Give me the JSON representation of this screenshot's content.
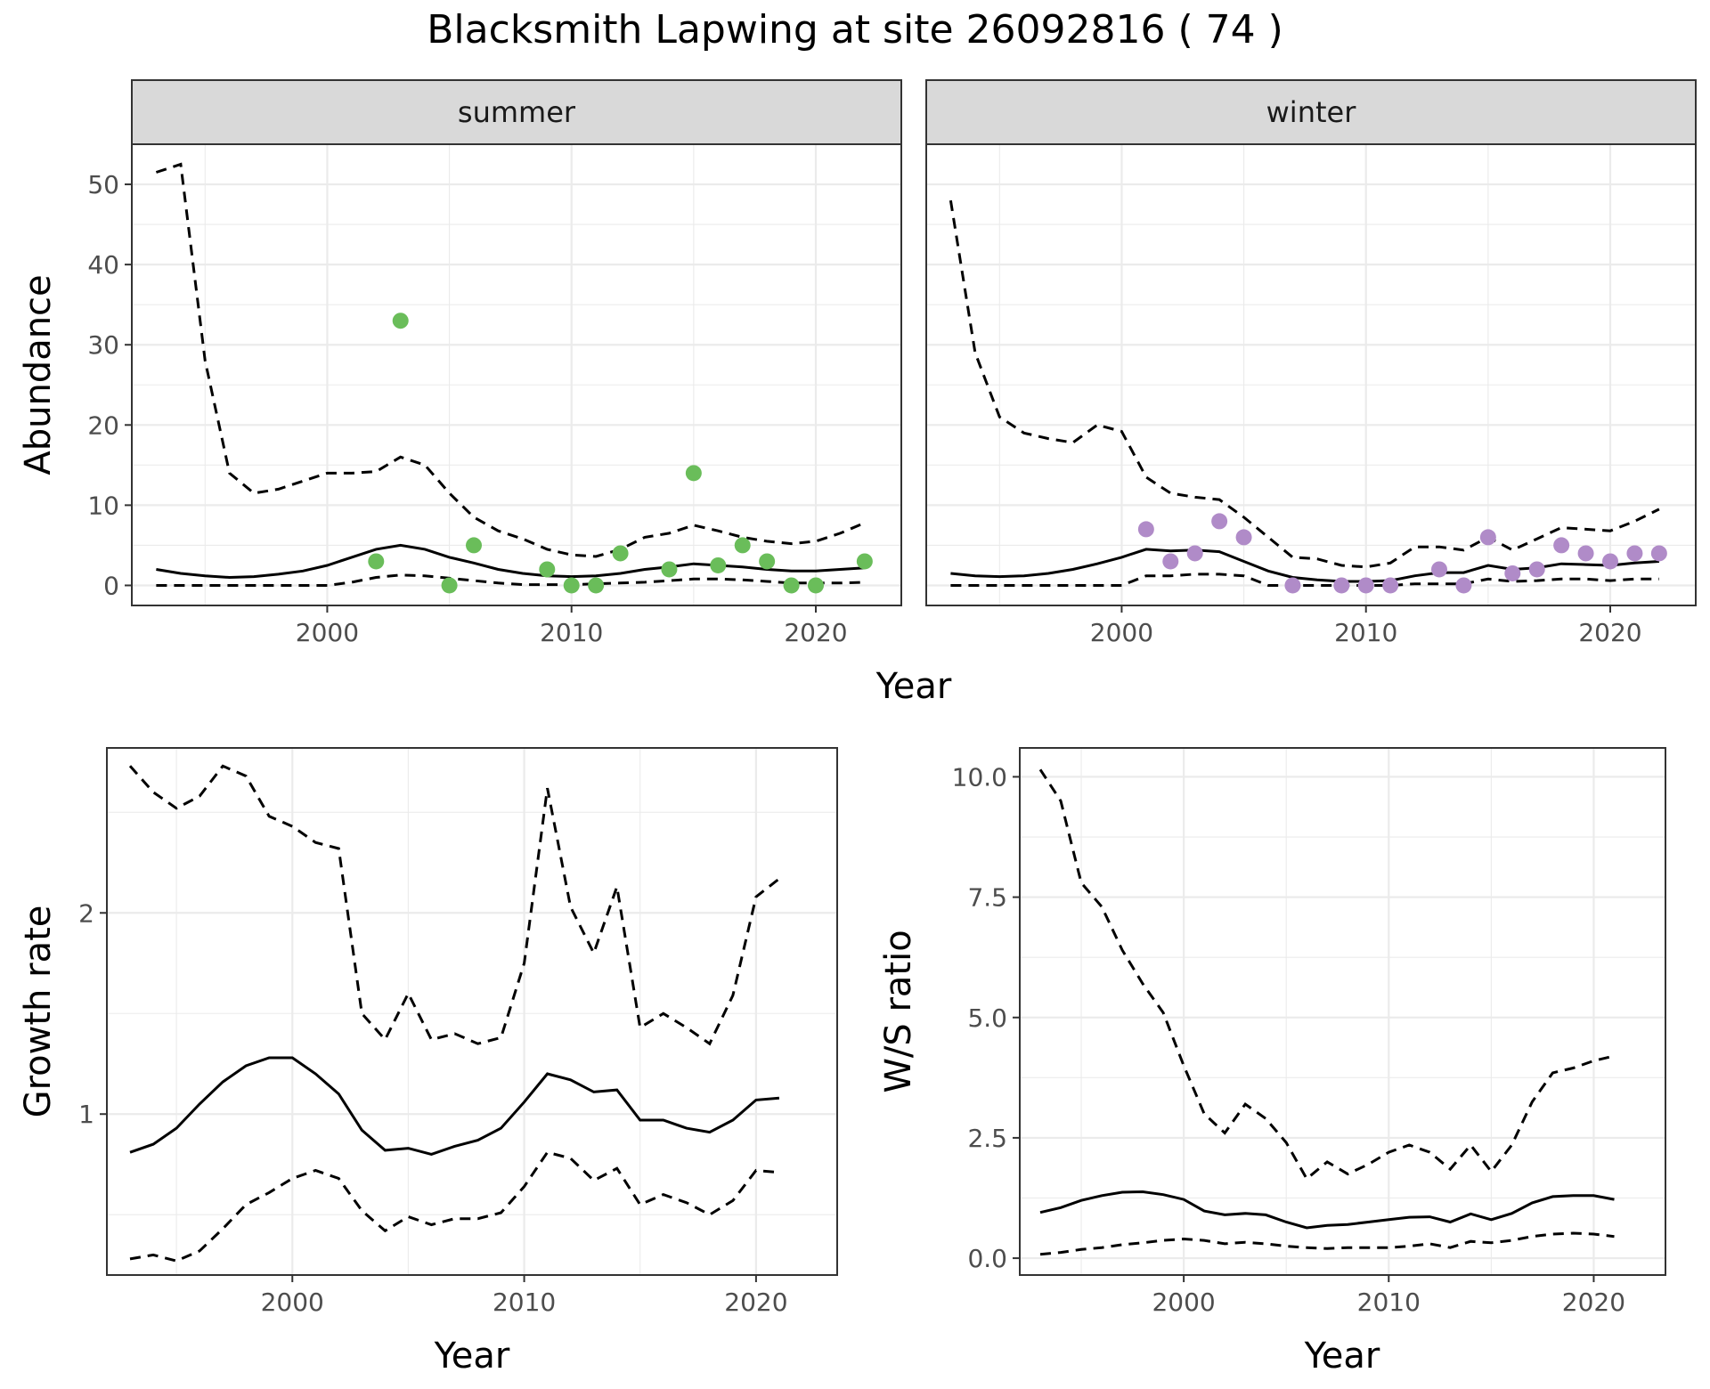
{
  "title": "Blacksmith Lapwing at site 26092816 ( 74 )",
  "colors": {
    "summer_points": "#6ABD5A",
    "winter_points": "#B08BC8",
    "lines": "#000000",
    "strip_bg": "#d9d9d9"
  },
  "chart_data": [
    {
      "type": "line",
      "facet": "summer",
      "xlabel": "Year",
      "ylabel": "Abundance",
      "xlim": [
        1992,
        2023.5
      ],
      "ylim": [
        -2.5,
        55
      ],
      "xticks": [
        2000,
        2010,
        2020
      ],
      "xtick_labels": [
        "2000",
        "2010",
        "2020"
      ],
      "yticks": [
        0,
        10,
        20,
        30,
        40,
        50
      ],
      "ytick_labels": [
        "0",
        "10",
        "20",
        "30",
        "40",
        "50"
      ],
      "grid": true,
      "x": [
        1993,
        1994,
        1995,
        1996,
        1997,
        1998,
        1999,
        2000,
        2001,
        2002,
        2003,
        2004,
        2005,
        2006,
        2007,
        2008,
        2009,
        2010,
        2011,
        2012,
        2013,
        2014,
        2015,
        2016,
        2017,
        2018,
        2019,
        2020,
        2021,
        2022
      ],
      "series": [
        {
          "role": "estimate",
          "style": "solid",
          "values": [
            2,
            1.5,
            1.2,
            1,
            1.1,
            1.4,
            1.8,
            2.5,
            3.5,
            4.5,
            5,
            4.5,
            3.5,
            2.8,
            2,
            1.5,
            1.2,
            1.1,
            1.2,
            1.5,
            2,
            2.3,
            2.7,
            2.5,
            2.3,
            2,
            1.8,
            1.8,
            2,
            2.2
          ]
        },
        {
          "role": "upper",
          "style": "dashed",
          "values": [
            51.5,
            52.5,
            28,
            14,
            11.5,
            12,
            13,
            14,
            14,
            14.2,
            16,
            15,
            11.5,
            8.5,
            6.8,
            5.8,
            4.5,
            3.8,
            3.6,
            4.5,
            6,
            6.5,
            7.5,
            6.8,
            6,
            5.5,
            5.2,
            5.5,
            6.5,
            7.8
          ]
        },
        {
          "role": "lower",
          "style": "dashed",
          "values": [
            0,
            0,
            0,
            0,
            0,
            0,
            0,
            0,
            0.4,
            1,
            1.3,
            1.2,
            0.9,
            0.6,
            0.3,
            0.1,
            0.1,
            0.1,
            0.2,
            0.3,
            0.4,
            0.6,
            0.8,
            0.8,
            0.7,
            0.5,
            0.3,
            0.3,
            0.3,
            0.4
          ]
        }
      ],
      "points": {
        "x": [
          2002,
          2003,
          2005,
          2006,
          2009,
          2010,
          2011,
          2012,
          2014,
          2015,
          2016,
          2017,
          2018,
          2019,
          2020,
          2022
        ],
        "y": [
          3,
          33,
          0,
          5,
          2,
          0,
          0,
          4,
          2,
          14,
          2.5,
          5,
          3,
          0,
          0,
          3
        ]
      }
    },
    {
      "type": "line",
      "facet": "winter",
      "xlabel": "Year",
      "ylabel": "Abundance",
      "xlim": [
        1992,
        2023.5
      ],
      "ylim": [
        -2.5,
        55
      ],
      "xticks": [
        2000,
        2010,
        2020
      ],
      "xtick_labels": [
        "2000",
        "2010",
        "2020"
      ],
      "yticks": [
        0,
        10,
        20,
        30,
        40,
        50
      ],
      "ytick_labels": [
        "0",
        "10",
        "20",
        "30",
        "40",
        "50"
      ],
      "grid": true,
      "x": [
        1993,
        1994,
        1995,
        1996,
        1997,
        1998,
        1999,
        2000,
        2001,
        2002,
        2003,
        2004,
        2005,
        2006,
        2007,
        2008,
        2009,
        2010,
        2011,
        2012,
        2013,
        2014,
        2015,
        2016,
        2017,
        2018,
        2019,
        2020,
        2021,
        2022
      ],
      "series": [
        {
          "role": "estimate",
          "style": "solid",
          "values": [
            1.5,
            1.2,
            1.1,
            1.2,
            1.5,
            2,
            2.7,
            3.5,
            4.5,
            4.3,
            4.4,
            4.2,
            3,
            1.8,
            1,
            0.7,
            0.5,
            0.5,
            0.6,
            1.2,
            1.6,
            1.6,
            2.5,
            2,
            2.2,
            2.7,
            2.6,
            2.5,
            2.8,
            3
          ]
        },
        {
          "role": "upper",
          "style": "dashed",
          "values": [
            48,
            29,
            21,
            19,
            18.3,
            17.8,
            20,
            19.2,
            13.5,
            11.5,
            11,
            10.7,
            8.5,
            6,
            3.5,
            3.3,
            2.5,
            2.3,
            2.8,
            4.8,
            4.8,
            4.4,
            6,
            4.4,
            5.8,
            7.2,
            7,
            6.8,
            8,
            9.5
          ]
        },
        {
          "role": "lower",
          "style": "dashed",
          "values": [
            0,
            0,
            0,
            0,
            0,
            0,
            0,
            0,
            1.2,
            1.2,
            1.4,
            1.4,
            1.2,
            0,
            0,
            0,
            0,
            0,
            0,
            0.2,
            0.2,
            0.2,
            0.8,
            0.5,
            0.6,
            0.8,
            0.8,
            0.6,
            0.8,
            0.8
          ]
        }
      ],
      "points": {
        "x": [
          2001,
          2002,
          2003,
          2004,
          2005,
          2007,
          2009,
          2010,
          2011,
          2013,
          2014,
          2015,
          2016,
          2017,
          2018,
          2019,
          2020,
          2021,
          2022
        ],
        "y": [
          7,
          3,
          4,
          8,
          6,
          0,
          0,
          0,
          0,
          2,
          0,
          6,
          1.5,
          2,
          5,
          4,
          3,
          4,
          4
        ]
      }
    },
    {
      "type": "line",
      "xlabel": "Year",
      "ylabel": "Growth rate",
      "xlim": [
        1992,
        2023.5
      ],
      "ylim": [
        0.2,
        2.82
      ],
      "xticks": [
        2000,
        2010,
        2020
      ],
      "xtick_labels": [
        "2000",
        "2010",
        "2020"
      ],
      "yticks": [
        1,
        2
      ],
      "ytick_labels": [
        "1",
        "2"
      ],
      "grid": true,
      "x": [
        1993,
        1994,
        1995,
        1996,
        1997,
        1998,
        1999,
        2000,
        2001,
        2002,
        2003,
        2004,
        2005,
        2006,
        2007,
        2008,
        2009,
        2010,
        2011,
        2012,
        2013,
        2014,
        2015,
        2016,
        2017,
        2018,
        2019,
        2020,
        2021
      ],
      "series": [
        {
          "role": "estimate",
          "style": "solid",
          "values": [
            0.81,
            0.85,
            0.93,
            1.05,
            1.16,
            1.24,
            1.28,
            1.28,
            1.2,
            1.1,
            0.92,
            0.82,
            0.83,
            0.8,
            0.84,
            0.87,
            0.93,
            1.06,
            1.2,
            1.17,
            1.11,
            1.12,
            0.97,
            0.97,
            0.93,
            0.91,
            0.97,
            1.07,
            1.08
          ]
        },
        {
          "role": "upper",
          "style": "dashed",
          "values": [
            2.73,
            2.6,
            2.52,
            2.58,
            2.73,
            2.68,
            2.48,
            2.43,
            2.35,
            2.32,
            1.5,
            1.37,
            1.6,
            1.37,
            1.4,
            1.35,
            1.38,
            1.75,
            2.62,
            2.03,
            1.8,
            2.13,
            1.43,
            1.5,
            1.43,
            1.35,
            1.59,
            2.08,
            2.17
          ]
        },
        {
          "role": "lower",
          "style": "dashed",
          "values": [
            0.28,
            0.3,
            0.27,
            0.32,
            0.43,
            0.55,
            0.61,
            0.68,
            0.72,
            0.68,
            0.52,
            0.42,
            0.49,
            0.45,
            0.48,
            0.48,
            0.51,
            0.64,
            0.81,
            0.78,
            0.67,
            0.73,
            0.55,
            0.6,
            0.56,
            0.5,
            0.57,
            0.72,
            0.71
          ]
        }
      ]
    },
    {
      "type": "line",
      "xlabel": "Year",
      "ylabel": "W/S ratio",
      "xlim": [
        1992,
        2023.5
      ],
      "ylim": [
        -0.35,
        10.6
      ],
      "xticks": [
        2000,
        2010,
        2020
      ],
      "xtick_labels": [
        "2000",
        "2010",
        "2020"
      ],
      "yticks": [
        0,
        2.5,
        5,
        7.5,
        10
      ],
      "ytick_labels": [
        "0.0",
        "2.5",
        "5.0",
        "7.5",
        "10.0"
      ],
      "grid": true,
      "x": [
        1993,
        1994,
        1995,
        1996,
        1997,
        1998,
        1999,
        2000,
        2001,
        2002,
        2003,
        2004,
        2005,
        2006,
        2007,
        2008,
        2009,
        2010,
        2011,
        2012,
        2013,
        2014,
        2015,
        2016,
        2017,
        2018,
        2019,
        2020,
        2021
      ],
      "series": [
        {
          "role": "estimate",
          "style": "solid",
          "values": [
            0.95,
            1.05,
            1.2,
            1.3,
            1.37,
            1.38,
            1.32,
            1.22,
            0.98,
            0.9,
            0.93,
            0.9,
            0.75,
            0.63,
            0.68,
            0.7,
            0.75,
            0.8,
            0.85,
            0.86,
            0.75,
            0.92,
            0.8,
            0.93,
            1.15,
            1.28,
            1.3,
            1.3,
            1.22
          ]
        },
        {
          "role": "upper",
          "style": "dashed",
          "values": [
            10.15,
            9.5,
            7.8,
            7.3,
            6.4,
            5.7,
            5.1,
            4,
            3,
            2.6,
            3.2,
            2.9,
            2.4,
            1.65,
            2,
            1.75,
            1.95,
            2.2,
            2.35,
            2.2,
            1.85,
            2.35,
            1.8,
            2.35,
            3.25,
            3.85,
            3.95,
            4.1,
            4.2
          ]
        },
        {
          "role": "lower",
          "style": "dashed",
          "values": [
            0.08,
            0.12,
            0.18,
            0.22,
            0.28,
            0.32,
            0.37,
            0.4,
            0.37,
            0.3,
            0.33,
            0.3,
            0.25,
            0.22,
            0.2,
            0.22,
            0.22,
            0.22,
            0.25,
            0.3,
            0.22,
            0.35,
            0.32,
            0.37,
            0.45,
            0.5,
            0.52,
            0.5,
            0.45
          ]
        }
      ]
    }
  ]
}
